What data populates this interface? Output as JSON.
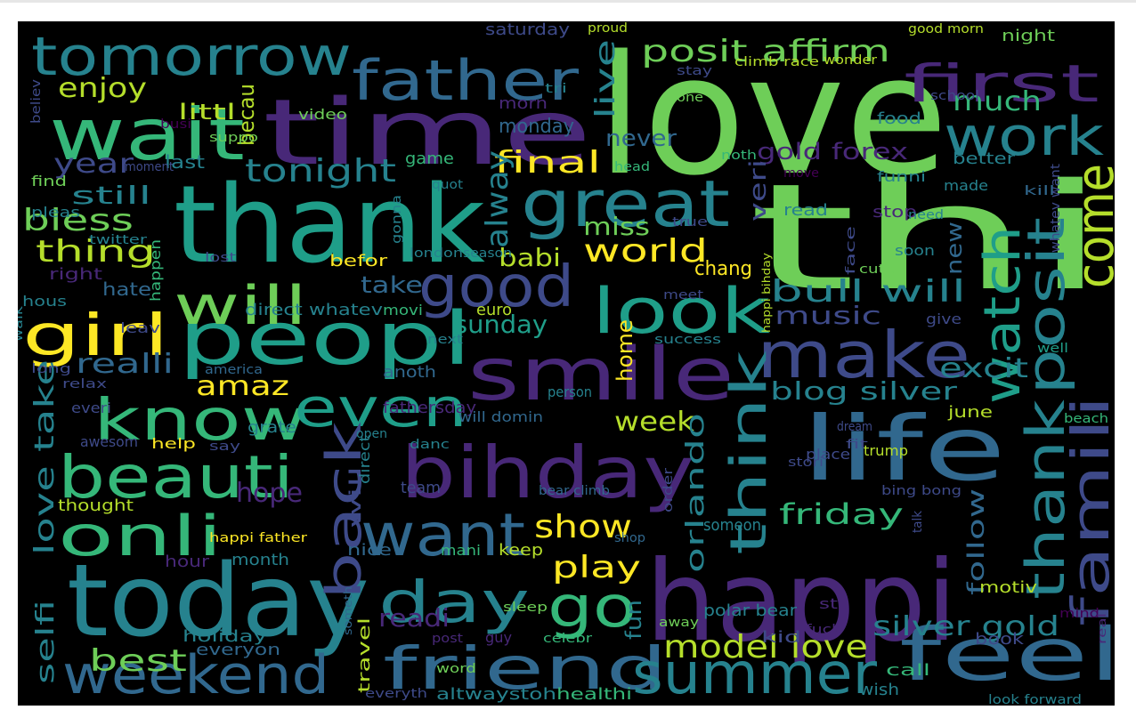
{
  "palette": [
    "#440154",
    "#482878",
    "#3e4a89",
    "#31688e",
    "#26828e",
    "#1f9e89",
    "#35b779",
    "#6ece58",
    "#b5de2b",
    "#fde725"
  ],
  "words": [
    {
      "t": "love",
      "c": "#6ece58"
    },
    {
      "t": "thi",
      "c": "#6ece58"
    },
    {
      "t": "thank",
      "c": "#1f9e89"
    },
    {
      "t": "happi",
      "c": "#482878"
    },
    {
      "t": "time",
      "c": "#482878"
    },
    {
      "t": "today",
      "c": "#26828e"
    },
    {
      "t": "life",
      "c": "#31688e"
    },
    {
      "t": "peopl",
      "c": "#1f9e89"
    },
    {
      "t": "smile",
      "c": "#482878"
    },
    {
      "t": "bihday",
      "c": "#482878"
    },
    {
      "t": "feel",
      "c": "#31688e"
    },
    {
      "t": "wait",
      "c": "#35b779"
    },
    {
      "t": "tomorrow",
      "c": "#26828e"
    },
    {
      "t": "father",
      "c": "#31688e"
    },
    {
      "t": "make",
      "c": "#3e4a89"
    },
    {
      "t": "great",
      "c": "#26828e"
    },
    {
      "t": "good",
      "c": "#3e4a89"
    },
    {
      "t": "look",
      "c": "#1f9e89"
    },
    {
      "t": "know",
      "c": "#35b779"
    },
    {
      "t": "beauti",
      "c": "#35b779"
    },
    {
      "t": "friend",
      "c": "#31688e"
    },
    {
      "t": "want",
      "c": "#31688e"
    },
    {
      "t": "go",
      "c": "#35b779"
    },
    {
      "t": "day",
      "c": "#26828e"
    },
    {
      "t": "summer",
      "c": "#26828e"
    },
    {
      "t": "weekend",
      "c": "#31688e"
    },
    {
      "t": "onli",
      "c": "#35b779"
    },
    {
      "t": "even",
      "c": "#1f9e89"
    },
    {
      "t": "will",
      "c": "#6ece58"
    },
    {
      "t": "girl",
      "c": "#fde725"
    },
    {
      "t": "first",
      "c": "#482878"
    },
    {
      "t": "work",
      "c": "#26828e"
    },
    {
      "t": "come",
      "c": "#b5de2b"
    },
    {
      "t": "famili",
      "c": "#3e4a89"
    },
    {
      "t": "posit",
      "c": "#26828e"
    },
    {
      "t": "thank",
      "c": "#26828e"
    },
    {
      "t": "watch",
      "c": "#1f9e89"
    },
    {
      "t": "think",
      "c": "#26828e"
    },
    {
      "t": "back",
      "c": "#3e4a89"
    },
    {
      "t": "posit affirm",
      "c": "#6ece58"
    },
    {
      "t": "tonight",
      "c": "#26828e"
    },
    {
      "t": "final",
      "c": "#fde725"
    },
    {
      "t": "world",
      "c": "#fde725"
    },
    {
      "t": "best",
      "c": "#6ece58"
    },
    {
      "t": "show",
      "c": "#fde725"
    },
    {
      "t": "play",
      "c": "#fde725"
    },
    {
      "t": "model love",
      "c": "#b5de2b"
    },
    {
      "t": "friday",
      "c": "#35b779"
    },
    {
      "t": "bull will",
      "c": "#26828e"
    },
    {
      "t": "silver gold",
      "c": "#26828e"
    },
    {
      "t": "blog silver",
      "c": "#26828e"
    },
    {
      "t": "enjoy",
      "c": "#b5de2b"
    },
    {
      "t": "much",
      "c": "#35b779"
    },
    {
      "t": "year",
      "c": "#3e4a89"
    },
    {
      "t": "still",
      "c": "#26828e"
    },
    {
      "t": "bless",
      "c": "#6ece58"
    },
    {
      "t": "thing",
      "c": "#b5de2b"
    },
    {
      "t": "amaz",
      "c": "#fde725"
    },
    {
      "t": "week",
      "c": "#b5de2b"
    },
    {
      "t": "alway",
      "c": "#26828e"
    },
    {
      "t": "live",
      "c": "#26828e"
    },
    {
      "t": "excit",
      "c": "#26828e"
    },
    {
      "t": "music",
      "c": "#3e4a89"
    },
    {
      "t": "realli",
      "c": "#31688e"
    },
    {
      "t": "gold forex",
      "c": "#482878"
    },
    {
      "t": "never",
      "c": "#31688e"
    },
    {
      "t": "veri",
      "c": "#3e4a89"
    },
    {
      "t": "miss",
      "c": "#6ece58"
    },
    {
      "t": "babi",
      "c": "#b5de2b"
    },
    {
      "t": "sunday",
      "c": "#1f9e89"
    },
    {
      "t": "hope",
      "c": "#482878"
    },
    {
      "t": "readi",
      "c": "#482878"
    },
    {
      "t": "love take",
      "c": "#26828e"
    },
    {
      "t": "selfi",
      "c": "#26828e"
    },
    {
      "t": "orlando",
      "c": "#26828e"
    },
    {
      "t": "follow",
      "c": "#31688e"
    },
    {
      "t": "new",
      "c": "#31688e"
    },
    {
      "t": "take",
      "c": "#31688e"
    },
    {
      "t": "becau",
      "c": "#b5de2b"
    },
    {
      "t": "littl",
      "c": "#b5de2b"
    },
    {
      "t": "last",
      "c": "#26828e"
    },
    {
      "t": "home",
      "c": "#fde725"
    },
    {
      "t": "fun",
      "c": "#26828e"
    },
    {
      "t": "chang",
      "c": "#fde725"
    },
    {
      "t": "hate",
      "c": "#31688e"
    },
    {
      "t": "monday",
      "c": "#31688e"
    },
    {
      "t": "saturday",
      "c": "#3e4a89"
    },
    {
      "t": "proud",
      "c": "#b5de2b"
    },
    {
      "t": "good morn",
      "c": "#b5de2b"
    },
    {
      "t": "night",
      "c": "#6ece58"
    },
    {
      "t": "stay",
      "c": "#3e4a89"
    },
    {
      "t": "climb race",
      "c": "#b5de2b"
    },
    {
      "t": "wonder",
      "c": "#b5de2b"
    },
    {
      "t": "tri",
      "c": "#26828e"
    },
    {
      "t": "done",
      "c": "#6ece58"
    },
    {
      "t": "morn",
      "c": "#482878"
    },
    {
      "t": "school",
      "c": "#3e4a89"
    },
    {
      "t": "food",
      "c": "#26828e"
    },
    {
      "t": "video",
      "c": "#6ece58"
    },
    {
      "t": "suppo",
      "c": "#6ece58"
    },
    {
      "t": "busi",
      "c": "#440154"
    },
    {
      "t": "game",
      "c": "#35b779"
    },
    {
      "t": "quot",
      "c": "#26828e"
    },
    {
      "t": "noth",
      "c": "#35b779"
    },
    {
      "t": "head",
      "c": "#35b779"
    },
    {
      "t": "move",
      "c": "#440154"
    },
    {
      "t": "funni",
      "c": "#26828e"
    },
    {
      "t": "better",
      "c": "#26828e"
    },
    {
      "t": "made",
      "c": "#26828e"
    },
    {
      "t": "kill",
      "c": "#31688e"
    },
    {
      "t": "whatev want",
      "c": "#3e4a89"
    },
    {
      "t": "stop",
      "c": "#482878"
    },
    {
      "t": "read",
      "c": "#26828e"
    },
    {
      "t": "need",
      "c": "#26828e"
    },
    {
      "t": "moment",
      "c": "#3e4a89"
    },
    {
      "t": "find",
      "c": "#6ece58"
    },
    {
      "t": "pleas",
      "c": "#26828e"
    },
    {
      "t": "believ",
      "c": "#3e4a89"
    },
    {
      "t": "twitter",
      "c": "#26828e"
    },
    {
      "t": "right",
      "c": "#482878"
    },
    {
      "t": "happen",
      "c": "#35b779"
    },
    {
      "t": "lost",
      "c": "#3e4a89"
    },
    {
      "t": "befor",
      "c": "#fde725"
    },
    {
      "t": "london",
      "c": "#26828e"
    },
    {
      "t": "season",
      "c": "#26828e"
    },
    {
      "t": "true",
      "c": "#3e4a89"
    },
    {
      "t": "meet",
      "c": "#3e4a89"
    },
    {
      "t": "face",
      "c": "#3e4a89"
    },
    {
      "t": "cute",
      "c": "#6ece58"
    },
    {
      "t": "soon",
      "c": "#26828e"
    },
    {
      "t": "gonna",
      "c": "#26828e"
    },
    {
      "t": "hous",
      "c": "#26828e"
    },
    {
      "t": "direct whatev",
      "c": "#26828e"
    },
    {
      "t": "movi",
      "c": "#35b779"
    },
    {
      "t": "euro",
      "c": "#b5de2b"
    },
    {
      "t": "happi bihday",
      "c": "#b5de2b"
    },
    {
      "t": "give",
      "c": "#3e4a89"
    },
    {
      "t": "leav",
      "c": "#3e4a89"
    },
    {
      "t": "walk",
      "c": "#26828e"
    },
    {
      "t": "next",
      "c": "#26828e"
    },
    {
      "t": "success",
      "c": "#26828e"
    },
    {
      "t": "well",
      "c": "#1f9e89"
    },
    {
      "t": "long",
      "c": "#3e4a89"
    },
    {
      "t": "america",
      "c": "#31688e"
    },
    {
      "t": "relax",
      "c": "#3e4a89"
    },
    {
      "t": "anoth",
      "c": "#31688e"
    },
    {
      "t": "everi",
      "c": "#3e4a89"
    },
    {
      "t": "fathersday",
      "c": "#482878"
    },
    {
      "t": "will domin",
      "c": "#31688e"
    },
    {
      "t": "person",
      "c": "#26828e"
    },
    {
      "t": "dream",
      "c": "#3e4a89"
    },
    {
      "t": "fit",
      "c": "#3e4a89"
    },
    {
      "t": "june",
      "c": "#b5de2b"
    },
    {
      "t": "beach",
      "c": "#35b779"
    },
    {
      "t": "awesom",
      "c": "#3e4a89"
    },
    {
      "t": "help",
      "c": "#fde725"
    },
    {
      "t": "say",
      "c": "#3e4a89"
    },
    {
      "t": "grate",
      "c": "#26828e"
    },
    {
      "t": "open",
      "c": "#26828e"
    },
    {
      "t": "direct",
      "c": "#26828e"
    },
    {
      "t": "danc",
      "c": "#26828e"
    },
    {
      "t": "stori",
      "c": "#3e4a89"
    },
    {
      "t": "place",
      "c": "#3e4a89"
    },
    {
      "t": "trump",
      "c": "#b5de2b"
    },
    {
      "t": "will",
      "c": "#3e4a89"
    },
    {
      "t": "bing bong",
      "c": "#3e4a89"
    },
    {
      "t": "team",
      "c": "#3e4a89"
    },
    {
      "t": "bear climb",
      "c": "#31688e"
    },
    {
      "t": "thought",
      "c": "#b5de2b"
    },
    {
      "t": "order",
      "c": "#3e4a89"
    },
    {
      "t": "someon",
      "c": "#26828e"
    },
    {
      "t": "talk",
      "c": "#3e4a89"
    },
    {
      "t": "happi father",
      "c": "#fde725"
    },
    {
      "t": "shop",
      "c": "#31688e"
    },
    {
      "t": "nice",
      "c": "#31688e"
    },
    {
      "t": "mani",
      "c": "#35b779"
    },
    {
      "t": "keep",
      "c": "#b5de2b"
    },
    {
      "t": "hour",
      "c": "#482878"
    },
    {
      "t": "month",
      "c": "#26828e"
    },
    {
      "t": "motiv",
      "c": "#b5de2b"
    },
    {
      "t": "sleep",
      "c": "#6ece58"
    },
    {
      "t": "sta",
      "c": "#482878"
    },
    {
      "t": "polar bear",
      "c": "#26828e"
    },
    {
      "t": "away",
      "c": "#6ece58"
    },
    {
      "t": "mind",
      "c": "#440154"
    },
    {
      "t": "holiday",
      "c": "#26828e"
    },
    {
      "t": "everyon",
      "c": "#31688e"
    },
    {
      "t": "post",
      "c": "#482878"
    },
    {
      "t": "guy",
      "c": "#482878"
    },
    {
      "t": "celebr",
      "c": "#35b779"
    },
    {
      "t": "kid",
      "c": "#3e4a89"
    },
    {
      "t": "fuck",
      "c": "#482878"
    },
    {
      "t": "real",
      "c": "#482878"
    },
    {
      "t": "book",
      "c": "#3e4a89"
    },
    {
      "t": "travel",
      "c": "#b5de2b"
    },
    {
      "t": "someth",
      "c": "#31688e"
    },
    {
      "t": "call",
      "c": "#35b779"
    },
    {
      "t": "word",
      "c": "#6ece58"
    },
    {
      "t": "wish",
      "c": "#26828e"
    },
    {
      "t": "everyth",
      "c": "#3e4a89"
    },
    {
      "t": "altwaystoh",
      "c": "#26828e"
    },
    {
      "t": "healthi",
      "c": "#35b779"
    },
    {
      "t": "look forward",
      "c": "#26828e"
    }
  ]
}
